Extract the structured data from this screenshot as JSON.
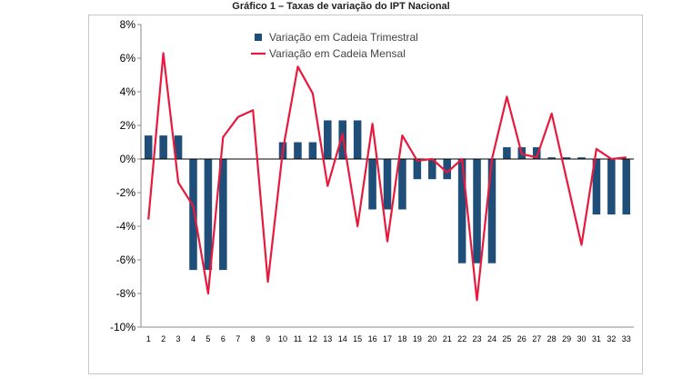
{
  "figure": {
    "title": "Gráfico 1 – Taxas de variação do IPT Nacional"
  },
  "chart_data": {
    "type": "bar",
    "categories": [
      "1",
      "2",
      "3",
      "4",
      "5",
      "6",
      "7",
      "8",
      "9",
      "10",
      "11",
      "12",
      "13",
      "14",
      "15",
      "16",
      "17",
      "18",
      "19",
      "20",
      "21",
      "22",
      "23",
      "24",
      "25",
      "26",
      "27",
      "28",
      "29",
      "30",
      "31",
      "32",
      "33"
    ],
    "series": [
      {
        "name": "Variação em Cadeia Trimestral",
        "type": "bar",
        "color": "#1f4e79",
        "values": [
          1.4,
          1.4,
          1.4,
          -6.6,
          -6.6,
          -6.6,
          0,
          0,
          0,
          1.0,
          1.0,
          1.0,
          2.3,
          2.3,
          2.3,
          -3.0,
          -3.0,
          -3.0,
          -1.2,
          -1.2,
          -1.2,
          -6.2,
          -6.2,
          -6.2,
          0.7,
          0.7,
          0.7,
          0.1,
          0.1,
          0.1,
          -3.3,
          -3.3,
          -3.3
        ]
      },
      {
        "name": "Variação em Cadeia Mensal",
        "type": "line",
        "color": "#e8193c",
        "values": [
          -3.6,
          6.3,
          -1.4,
          -2.8,
          -8.0,
          1.3,
          2.5,
          2.9,
          -7.3,
          0.5,
          5.5,
          3.9,
          -1.6,
          1.5,
          -4.0,
          2.1,
          -4.9,
          1.4,
          -0.1,
          0.0,
          -0.8,
          0.0,
          -8.4,
          0.0,
          3.7,
          0.3,
          0.1,
          2.7,
          -1.2,
          -5.1,
          0.6,
          0.0,
          0.1
        ]
      }
    ],
    "ylim": [
      -10,
      8
    ],
    "y_ticks": [
      8,
      6,
      4,
      2,
      0,
      -2,
      -4,
      -6,
      -8,
      -10
    ],
    "y_tick_labels": [
      "8%",
      "6%",
      "4%",
      "2%",
      "0%",
      "-2%",
      "-4%",
      "-6%",
      "-8%",
      "-10%"
    ],
    "xlabel": "",
    "ylabel": "",
    "grid": false,
    "legend_position": "top"
  }
}
